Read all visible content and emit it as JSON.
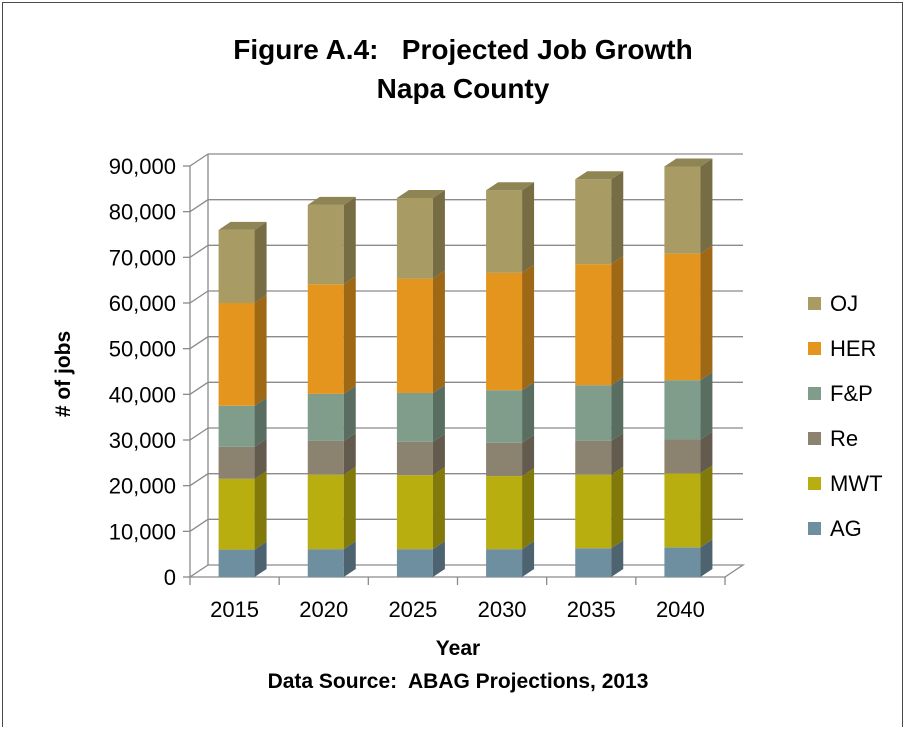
{
  "chart_data": {
    "type": "bar",
    "stacked": true,
    "three_d": true,
    "title_line1": "Figure A.4:   Projected Job Growth",
    "title_line2": "Napa County",
    "xlabel": "Year",
    "ylabel": "# of jobs",
    "source": "Data Source:  ABAG Projections, 2013",
    "categories": [
      "2015",
      "2020",
      "2025",
      "2030",
      "2035",
      "2040"
    ],
    "ylim": [
      0,
      90000
    ],
    "yticks": [
      0,
      10000,
      20000,
      30000,
      40000,
      50000,
      60000,
      70000,
      80000,
      90000
    ],
    "ytick_labels": [
      "0",
      "10,000",
      "20,000",
      "30,000",
      "40,000",
      "50,000",
      "60,000",
      "70,000",
      "80,000",
      "90,000"
    ],
    "grid": true,
    "legend_position": "right",
    "series": [
      {
        "name": "AG",
        "color": "#6E8FA0",
        "values": [
          6000,
          6100,
          6100,
          6100,
          6300,
          6500
        ]
      },
      {
        "name": "MWT",
        "color": "#B8AE10",
        "values": [
          15500,
          16300,
          16200,
          16000,
          16100,
          16200
        ]
      },
      {
        "name": "Re",
        "color": "#8C8270",
        "values": [
          7000,
          7400,
          7300,
          7300,
          7400,
          7400
        ]
      },
      {
        "name": "F&P",
        "color": "#7F9D8A",
        "values": [
          9000,
          10300,
          10700,
          11500,
          12200,
          13000
        ]
      },
      {
        "name": "HER",
        "color": "#E3951E",
        "values": [
          22500,
          24000,
          25000,
          25700,
          26500,
          27700
        ]
      },
      {
        "name": "OJ",
        "color": "#A89B63",
        "values": [
          16000,
          17400,
          17700,
          18100,
          18600,
          19100
        ]
      }
    ]
  }
}
